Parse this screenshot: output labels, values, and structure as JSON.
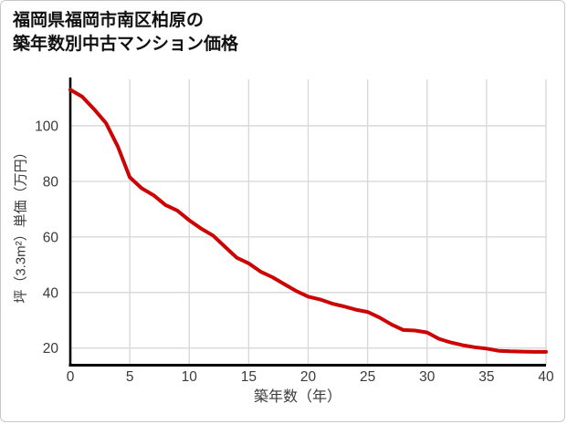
{
  "title": {
    "line1": "福岡県福岡市南区柏原の",
    "line2": "築年数別中古マンション価格"
  },
  "chart_data": {
    "type": "line",
    "title": "福岡県福岡市南区柏原の築年数別中古マンション価格",
    "xlabel": "築年数（年）",
    "ylabel": "坪（3.3m²）単価（万円）",
    "x": [
      0,
      1,
      2,
      3,
      4,
      5,
      6,
      7,
      8,
      9,
      10,
      11,
      12,
      13,
      14,
      15,
      16,
      17,
      18,
      19,
      20,
      21,
      22,
      23,
      24,
      25,
      26,
      27,
      28,
      29,
      30,
      31,
      32,
      33,
      34,
      35,
      36,
      37,
      38,
      39,
      40
    ],
    "values": [
      113,
      110.5,
      106,
      101,
      92.5,
      81.5,
      77.5,
      75,
      71.5,
      69.5,
      66,
      63,
      60.5,
      56.5,
      52.5,
      50.5,
      47.5,
      45.5,
      43,
      40.5,
      38.5,
      37.5,
      36,
      35,
      33.8,
      33,
      31,
      28.5,
      26.5,
      26.3,
      25.6,
      23.3,
      22,
      21,
      20.3,
      19.8,
      19,
      18.8,
      18.7,
      18.6,
      18.6
    ],
    "x_ticks": [
      0,
      5,
      10,
      15,
      20,
      25,
      30,
      35,
      40
    ],
    "y_ticks": [
      20,
      40,
      60,
      80,
      100
    ],
    "xlim": [
      0,
      40
    ],
    "grid": true,
    "legend": "none",
    "line_color": "#cc0404",
    "grid_color": "#d9d9d9",
    "axis_color": "#000000",
    "tick_label_color": "#3a3a3a"
  }
}
